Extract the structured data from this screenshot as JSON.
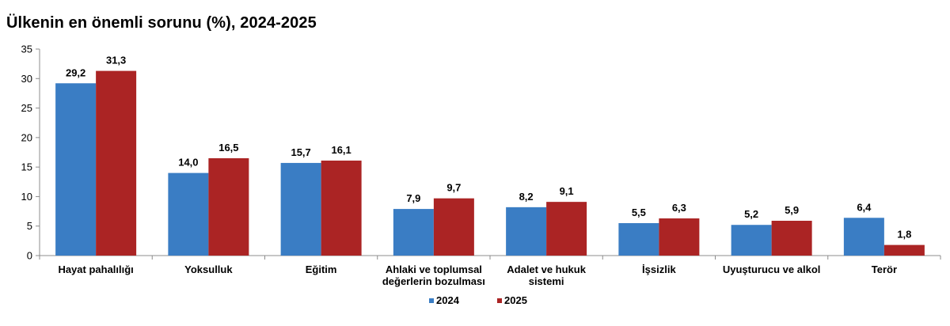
{
  "chart_data": {
    "type": "bar",
    "title": "Ülkenin en önemli sorunu (%), 2024-2025",
    "xlabel": "",
    "ylabel": "",
    "ylim": [
      0,
      35
    ],
    "yticks": [
      "0",
      "5",
      "10",
      "15",
      "20",
      "25",
      "30",
      "35"
    ],
    "grid": false,
    "legend_position": "bottom-center",
    "categories": [
      [
        "Hayat pahalılığı"
      ],
      [
        "Yoksulluk"
      ],
      [
        "Eğitim"
      ],
      [
        "Ahlaki ve toplumsal",
        "değerlerin bozulması"
      ],
      [
        "Adalet ve hukuk",
        "sistemi"
      ],
      [
        "İşsizlik"
      ],
      [
        "Uyuşturucu ve alkol"
      ],
      [
        "Terör"
      ]
    ],
    "series": [
      {
        "name": "2024",
        "color": "#3a7dc4",
        "values": [
          29.2,
          14.0,
          15.7,
          7.9,
          8.2,
          5.5,
          5.2,
          6.4
        ],
        "labels": [
          "29,2",
          "14,0",
          "15,7",
          "7,9",
          "8,2",
          "5,5",
          "5,2",
          "6,4"
        ]
      },
      {
        "name": "2025",
        "color": "#ab2424",
        "values": [
          31.3,
          16.5,
          16.1,
          9.7,
          9.1,
          6.3,
          5.9,
          1.8
        ],
        "labels": [
          "31,3",
          "16,5",
          "16,1",
          "9,7",
          "9,1",
          "6,3",
          "5,9",
          "1,8"
        ]
      }
    ]
  }
}
